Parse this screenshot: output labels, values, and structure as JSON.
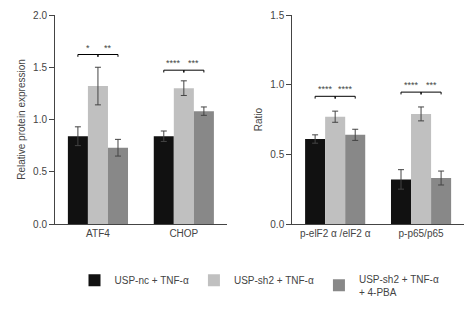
{
  "chart_data": [
    {
      "type": "bar",
      "ylabel": "Relative protein expression",
      "categories": [
        "ATF4",
        "CHOP"
      ],
      "series": [
        {
          "name": "USP-nc + TNF-α",
          "color": "#111111",
          "values": [
            0.84,
            0.84
          ],
          "errors": [
            0.09,
            0.05
          ]
        },
        {
          "name": "USP-sh2 + TNF-α",
          "color": "#c0c0c0",
          "values": [
            1.32,
            1.3
          ],
          "errors": [
            0.18,
            0.07
          ]
        },
        {
          "name": "USP-sh2 + TNF-α\n+ 4-PBA",
          "color": "#888888",
          "values": [
            0.73,
            1.08
          ],
          "errors": [
            0.08,
            0.04
          ]
        }
      ],
      "annotations": [
        {
          "x": "ATF4",
          "between": [
            "USP-nc + TNF-α",
            "USP-sh2 + TNF-α"
          ],
          "text": "*",
          "y": 1.6
        },
        {
          "x": "ATF4",
          "between": [
            "USP-sh2 + TNF-α",
            "USP-sh2 + TNF-α\n+ 4-PBA"
          ],
          "text": "**",
          "y": 1.6
        },
        {
          "x": "CHOP",
          "between": [
            "USP-nc + TNF-α",
            "USP-sh2 + TNF-α"
          ],
          "text": "****",
          "y": 1.45
        },
        {
          "x": "CHOP",
          "between": [
            "USP-sh2 + TNF-α",
            "USP-sh2 + TNF-α\n+ 4-PBA"
          ],
          "text": "***",
          "y": 1.45
        }
      ],
      "ylim": [
        0.0,
        2.0
      ],
      "yticks": [
        {
          "value": 0.0,
          "label": "0.0"
        },
        0.5,
        {
          "value": 1.0,
          "label": "1.0"
        },
        1.5,
        {
          "value": 2.0,
          "label": "2.0"
        }
      ],
      "grid": false,
      "legend": "bottom"
    },
    {
      "type": "bar",
      "ylabel": "Ratio",
      "categories": [
        "p-elF2 α /elF2 α",
        "p-p65/p65"
      ],
      "series": [
        {
          "name": "USP-nc + TNF-α",
          "color": "#111111",
          "values": [
            0.61,
            0.32
          ],
          "errors": [
            0.03,
            0.07
          ]
        },
        {
          "name": "USP-sh2 + TNF-α",
          "color": "#c0c0c0",
          "values": [
            0.77,
            0.79
          ],
          "errors": [
            0.04,
            0.05
          ]
        },
        {
          "name": "USP-sh2 + TNF-α\n+ 4-PBA",
          "color": "#888888",
          "values": [
            0.64,
            0.33
          ],
          "errors": [
            0.04,
            0.05
          ]
        }
      ],
      "annotations": [
        {
          "x": "p-elF2 α /elF2 α",
          "between": [
            "USP-nc + TNF-α",
            "USP-sh2 + TNF-α"
          ],
          "text": "****",
          "y": 0.9
        },
        {
          "x": "p-elF2 α /elF2 α",
          "between": [
            "USP-sh2 + TNF-α",
            "USP-sh2 + TNF-α\n+ 4-PBA"
          ],
          "text": "****",
          "y": 0.9
        },
        {
          "x": "p-p65/p65",
          "between": [
            "USP-nc + TNF-α",
            "USP-sh2 + TNF-α"
          ],
          "text": "****",
          "y": 0.93
        },
        {
          "x": "p-p65/p65",
          "between": [
            "USP-sh2 + TNF-α",
            "USP-sh2 + TNF-α\n+ 4-PBA"
          ],
          "text": "***",
          "y": 0.93
        }
      ],
      "ylim": [
        0.0,
        1.5
      ],
      "yticks": [
        {
          "value": 0.0,
          "label": "0.0"
        },
        0.5,
        {
          "value": 1.0,
          "label": "1.0"
        },
        1.5
      ],
      "grid": false
    }
  ]
}
